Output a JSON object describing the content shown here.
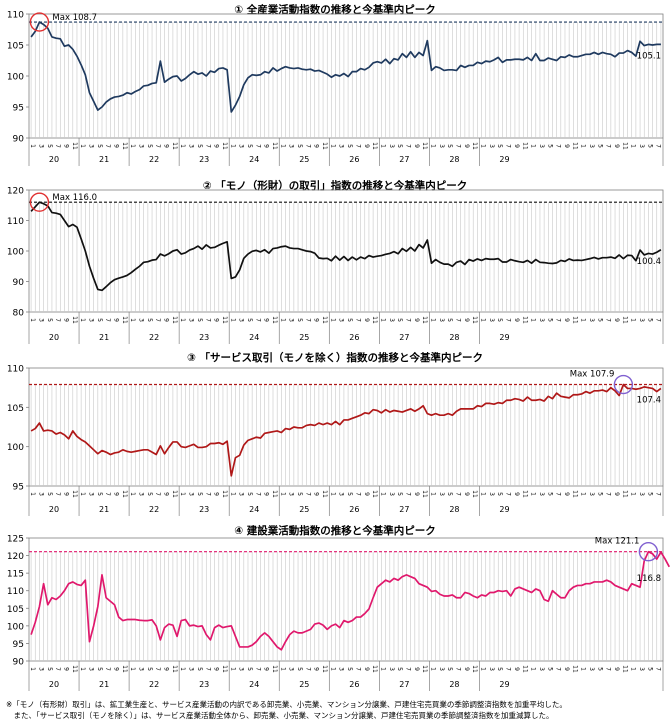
{
  "chart_data": [
    {
      "type": "line",
      "title": "① 全産業活動指数の推移と今基準内ピーク",
      "color": "#1f3a5f",
      "ylim": [
        90,
        110
      ],
      "yticks": [
        90,
        95,
        100,
        105,
        110
      ],
      "peak_label": "Max 108.7",
      "peak_value": 108.7,
      "end_label": "105.1",
      "circle_at": "start",
      "circle_color": "#e03030",
      "line_color": "#1f3a5f",
      "values": [
        106.3,
        107.2,
        108.7,
        108.3,
        107.7,
        106.3,
        106.1,
        106.0,
        104.8,
        105.0,
        104.3,
        103.2,
        101.8,
        100.2,
        97.3,
        95.9,
        94.5,
        95.0,
        95.8,
        96.3,
        96.6,
        96.7,
        96.9,
        97.3,
        97.1,
        97.5,
        97.8,
        98.4,
        98.5,
        98.8,
        98.9,
        102.4,
        99.0,
        99.5,
        99.9,
        100.0,
        99.2,
        99.6,
        100.2,
        100.7,
        100.3,
        100.5,
        100.0,
        100.8,
        100.6,
        101.2,
        101.3,
        101.0,
        94.2,
        95.3,
        96.7,
        98.6,
        99.7,
        100.2,
        100.1,
        100.2,
        100.7,
        100.5,
        101.3,
        100.8,
        101.2,
        101.5,
        101.3,
        101.2,
        101.3,
        101.1,
        101.0,
        101.1,
        100.8,
        100.9,
        100.6,
        100.3,
        99.8,
        100.2,
        100.0,
        100.4,
        99.9,
        100.7,
        100.7,
        101.2,
        101.0,
        101.4,
        102.1,
        102.3,
        102.1,
        102.7,
        102.0,
        102.8,
        102.6,
        103.6,
        103.0,
        103.9,
        103.0,
        103.8,
        103.3,
        105.7,
        100.9,
        101.5,
        101.3,
        100.9,
        101.0,
        101.0,
        100.9,
        101.7,
        101.4,
        101.7,
        101.7,
        102.2,
        102.0,
        102.4,
        102.3,
        102.6,
        103.0,
        102.2,
        102.6,
        102.6,
        102.7,
        102.7,
        102.6,
        103.0,
        102.5,
        103.6,
        102.5,
        102.5,
        102.9,
        102.7,
        102.5,
        103.1,
        103.0,
        103.4,
        103.1,
        103.1,
        103.3,
        103.5,
        103.5,
        103.8,
        103.5,
        103.8,
        103.6,
        103.5,
        103.1,
        103.7,
        103.7,
        104.1,
        103.8,
        103.2,
        105.6,
        104.9,
        105.1,
        105.0,
        105.1,
        105.1
      ]
    },
    {
      "type": "line",
      "title": "② 「モノ（形財）の取引」指数の推移と今基準内ピーク",
      "ylim": [
        80,
        120
      ],
      "yticks": [
        80,
        90,
        100,
        110,
        120
      ],
      "peak_label": "Max 116.0",
      "peak_value": 116.0,
      "end_label": "100.4",
      "circle_at": "start",
      "circle_color": "#e03030",
      "line_color": "#111111",
      "values": [
        113.0,
        114.5,
        116.0,
        115.5,
        114.8,
        112.6,
        112.4,
        112.0,
        110.0,
        108.0,
        108.7,
        107.8,
        104.0,
        100.0,
        95.0,
        91.0,
        87.4,
        87.1,
        88.3,
        89.6,
        90.6,
        91.1,
        91.5,
        92.0,
        92.9,
        94.0,
        95.0,
        96.3,
        96.5,
        97.0,
        97.2,
        99.0,
        98.4,
        99.1,
        100.0,
        100.4,
        99.0,
        99.4,
        100.3,
        100.8,
        101.6,
        100.6,
        102.0,
        101.0,
        101.2,
        101.9,
        102.5,
        103.0,
        91.0,
        91.5,
        93.8,
        97.6,
        99.0,
        99.9,
        100.2,
        99.7,
        100.4,
        99.3,
        100.8,
        101.0,
        101.4,
        101.6,
        101.0,
        100.8,
        100.8,
        100.4,
        100.0,
        99.8,
        99.3,
        97.7,
        97.5,
        97.6,
        96.8,
        98.3,
        97.0,
        98.2,
        96.9,
        98.0,
        97.1,
        98.0,
        97.5,
        98.5,
        98.0,
        98.3,
        98.5,
        98.9,
        99.2,
        99.8,
        99.1,
        100.8,
        99.9,
        101.2,
        100.0,
        102.1,
        101.0,
        103.6,
        96.0,
        97.2,
        96.3,
        95.7,
        95.7,
        95.0,
        96.3,
        96.7,
        95.6,
        97.2,
        96.7,
        97.4,
        96.9,
        97.5,
        97.3,
        97.3,
        97.5,
        96.4,
        96.4,
        97.2,
        96.8,
        96.5,
        96.3,
        96.9,
        96.0,
        97.2,
        96.3,
        96.2,
        96.0,
        95.9,
        96.1,
        96.9,
        96.6,
        97.4,
        96.9,
        97.0,
        96.9,
        97.2,
        97.5,
        97.9,
        97.4,
        97.8,
        97.8,
        98.0,
        97.6,
        98.7,
        97.5,
        98.6,
        98.5,
        96.8,
        100.3,
        98.7,
        99.2,
        99.0,
        99.6,
        100.4
      ]
    },
    {
      "type": "line",
      "title": "③ 「サービス取引（モノを除く）指数の推移と今基準内ピーク",
      "ylim": [
        95,
        110
      ],
      "yticks": [
        95,
        100,
        105,
        110
      ],
      "peak_label": "Max 107.9",
      "peak_value": 107.9,
      "end_label": "107.4",
      "circle_at": "end",
      "circle_color": "#8060d0",
      "line_color": "#b01818",
      "values": [
        102.0,
        102.3,
        103.0,
        102.0,
        102.1,
        102.0,
        101.6,
        101.8,
        101.5,
        101.0,
        102.0,
        101.3,
        100.9,
        100.6,
        100.1,
        99.6,
        99.1,
        99.5,
        99.3,
        99.0,
        99.2,
        99.3,
        99.6,
        99.4,
        99.3,
        99.4,
        99.5,
        99.6,
        99.6,
        99.3,
        99.0,
        100.1,
        99.1,
        99.9,
        100.6,
        100.6,
        100.0,
        99.9,
        100.1,
        100.3,
        99.9,
        99.9,
        100.0,
        100.4,
        100.4,
        100.5,
        100.3,
        100.7,
        96.3,
        98.6,
        98.9,
        100.2,
        100.8,
        101.0,
        101.2,
        101.1,
        101.7,
        101.8,
        101.9,
        102.0,
        101.8,
        102.3,
        102.2,
        102.5,
        102.4,
        102.4,
        102.7,
        102.8,
        102.7,
        103.0,
        102.8,
        103.0,
        102.8,
        103.2,
        102.8,
        103.4,
        103.4,
        103.6,
        103.8,
        104.0,
        104.3,
        104.2,
        104.7,
        104.6,
        104.3,
        104.7,
        104.4,
        104.6,
        104.5,
        104.4,
        104.6,
        104.8,
        104.5,
        104.8,
        105.2,
        104.2,
        104.0,
        104.2,
        104.0,
        104.0,
        104.2,
        104.0,
        104.5,
        104.8,
        104.8,
        104.8,
        104.8,
        105.2,
        105.1,
        105.5,
        105.5,
        105.4,
        105.6,
        105.5,
        105.9,
        105.9,
        106.1,
        106.0,
        105.8,
        106.3,
        105.9,
        105.9,
        106.0,
        105.8,
        106.4,
        106.1,
        106.8,
        106.4,
        106.3,
        106.2,
        106.6,
        106.6,
        106.7,
        107.0,
        106.8,
        107.1,
        107.1,
        107.2,
        107.0,
        107.5,
        107.1,
        106.5,
        107.9,
        107.4,
        107.4,
        107.3,
        107.4,
        107.6,
        107.5,
        107.4,
        107.0,
        107.4
      ]
    },
    {
      "type": "line",
      "title": "④ 建設業活動指数の推移と今基準内ピーク",
      "ylim": [
        90,
        125
      ],
      "yticks": [
        90,
        95,
        100,
        105,
        110,
        115,
        120,
        125
      ],
      "peak_label": "Max 121.1",
      "peak_value": 121.1,
      "end_label": "116.8",
      "circle_at": "end",
      "circle_color": "#8060d0",
      "line_color": "#e0186c",
      "values": [
        97.5,
        101.0,
        105.5,
        112.0,
        106.0,
        108.0,
        107.5,
        108.5,
        110.0,
        112.0,
        112.5,
        111.8,
        111.5,
        113.0,
        95.5,
        100.0,
        105.5,
        114.5,
        108.0,
        107.0,
        106.0,
        102.5,
        101.5,
        101.8,
        101.8,
        101.8,
        101.6,
        101.5,
        101.5,
        101.7,
        100.0,
        96.0,
        99.5,
        100.5,
        100.2,
        97.0,
        101.5,
        101.8,
        100.0,
        100.2,
        99.8,
        100.0,
        97.5,
        96.0,
        99.5,
        100.2,
        99.5,
        99.8,
        100.0,
        97.0,
        94.0,
        94.0,
        94.0,
        94.5,
        95.5,
        97.0,
        98.0,
        97.0,
        95.5,
        94.0,
        93.2,
        95.5,
        97.5,
        98.5,
        98.0,
        98.0,
        98.5,
        99.0,
        100.5,
        100.8,
        100.2,
        99.0,
        100.0,
        100.5,
        99.5,
        101.5,
        101.0,
        101.5,
        102.5,
        102.5,
        103.5,
        104.8,
        108.0,
        111.0,
        112.0,
        113.0,
        112.5,
        113.5,
        113.0,
        114.0,
        114.5,
        114.0,
        113.5,
        112.0,
        111.5,
        111.0,
        109.8,
        110.0,
        109.0,
        108.5,
        108.5,
        108.8,
        108.0,
        108.0,
        109.5,
        109.2,
        108.5,
        108.0,
        108.8,
        108.5,
        109.5,
        109.5,
        110.0,
        109.8,
        110.0,
        108.5,
        110.5,
        111.0,
        110.5,
        110.0,
        109.5,
        110.5,
        110.0,
        107.5,
        107.0,
        110.0,
        109.0,
        108.0,
        108.0,
        110.0,
        111.0,
        111.5,
        111.5,
        112.0,
        112.0,
        112.5,
        112.5,
        112.5,
        113.0,
        112.5,
        111.5,
        111.0,
        110.5,
        110.0,
        112.0,
        111.5,
        111.0,
        118.5,
        121.1,
        120.5,
        119.0,
        121.0,
        119.0,
        116.8
      ]
    }
  ],
  "x_axis": {
    "year_labels": [
      "20",
      "21",
      "22",
      "23",
      "24",
      "25",
      "26",
      "27",
      "28",
      "29"
    ],
    "month_ticks": [
      "1",
      "3",
      "5",
      "7",
      "9",
      "11"
    ]
  },
  "notes": [
    "※「モノ（有形財）取引」は、鉱工業生産と、サービス産業活動の内訳である卸売業、小売業、マンション分譲業、戸建住宅売買業の季節調整済指数を加重平均した。",
    "　また、「サービス取引（モノを除く）」は、サービス産業活動全体から、卸売業、小売業、マンション分譲業、戸建住宅売買業の季節調整済指数を加重減算した。"
  ]
}
